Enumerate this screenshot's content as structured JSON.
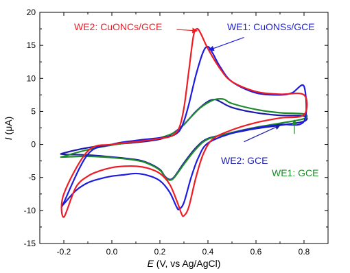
{
  "chart_data": {
    "type": "line",
    "xlabel": {
      "symbol": "E",
      "unit": " (V, vs Ag/AgCl)"
    },
    "ylabel": {
      "symbol": "I",
      "unit": " (μA)"
    },
    "xlim": [
      -0.3,
      0.9
    ],
    "ylim": [
      -15,
      20
    ],
    "xticks": [
      -0.2,
      0.0,
      0.2,
      0.4,
      0.6,
      0.8
    ],
    "xtick_labels": [
      "-0.2",
      "0.0",
      "0.2",
      "0.4",
      "0.6",
      "0.8"
    ],
    "yticks": [
      -15,
      -10,
      -5,
      0,
      5,
      10,
      15,
      20
    ],
    "ytick_labels": [
      "-15",
      "-10",
      "-5",
      "0",
      "5",
      "10",
      "15",
      "20"
    ],
    "grid": false,
    "series": [
      {
        "name": "WE2: CuONCs/GCE",
        "color": "#ee1c25",
        "points": [
          [
            -0.2,
            -11.0
          ],
          [
            -0.15,
            -6.5
          ],
          [
            -0.1,
            -4.8
          ],
          [
            -0.05,
            -4.0
          ],
          [
            0.0,
            -3.5
          ],
          [
            0.05,
            -3.3
          ],
          [
            0.1,
            -3.3
          ],
          [
            0.15,
            -3.6
          ],
          [
            0.2,
            -4.4
          ],
          [
            0.24,
            -6.0
          ],
          [
            0.27,
            -8.5
          ],
          [
            0.29,
            -10.5
          ],
          [
            0.3,
            -10.8
          ],
          [
            0.32,
            -9.5
          ],
          [
            0.35,
            -5.0
          ],
          [
            0.38,
            -1.5
          ],
          [
            0.42,
            0.8
          ],
          [
            0.5,
            2.2
          ],
          [
            0.6,
            3.3
          ],
          [
            0.7,
            4.0
          ],
          [
            0.8,
            4.5
          ],
          [
            0.8,
            7.5
          ],
          [
            0.7,
            7.6
          ],
          [
            0.6,
            8.0
          ],
          [
            0.5,
            9.5
          ],
          [
            0.45,
            11.5
          ],
          [
            0.4,
            14.5
          ],
          [
            0.37,
            16.8
          ],
          [
            0.355,
            17.5
          ],
          [
            0.34,
            16.5
          ],
          [
            0.32,
            11.0
          ],
          [
            0.3,
            5.5
          ],
          [
            0.28,
            2.5
          ],
          [
            0.25,
            1.3
          ],
          [
            0.2,
            0.9
          ],
          [
            0.1,
            0.4
          ],
          [
            0.0,
            0.0
          ],
          [
            -0.1,
            -1.0
          ],
          [
            -0.2,
            -7.5
          ]
        ]
      },
      {
        "name": "WE1: CuONSs/GCE",
        "color": "#1c1ce0",
        "points": [
          [
            -0.2,
            -9.0
          ],
          [
            -0.15,
            -7.0
          ],
          [
            -0.1,
            -5.8
          ],
          [
            -0.05,
            -5.2
          ],
          [
            0.0,
            -4.8
          ],
          [
            0.05,
            -4.6
          ],
          [
            0.1,
            -4.4
          ],
          [
            0.15,
            -4.7
          ],
          [
            0.2,
            -5.5
          ],
          [
            0.24,
            -7.2
          ],
          [
            0.27,
            -9.5
          ],
          [
            0.28,
            -9.8
          ],
          [
            0.3,
            -8.8
          ],
          [
            0.33,
            -5.0
          ],
          [
            0.36,
            -2.0
          ],
          [
            0.4,
            0.2
          ],
          [
            0.5,
            1.7
          ],
          [
            0.6,
            2.5
          ],
          [
            0.7,
            3.0
          ],
          [
            0.8,
            3.5
          ],
          [
            0.8,
            8.8
          ],
          [
            0.75,
            7.8
          ],
          [
            0.7,
            7.5
          ],
          [
            0.6,
            7.8
          ],
          [
            0.5,
            9.5
          ],
          [
            0.45,
            11.8
          ],
          [
            0.42,
            13.8
          ],
          [
            0.4,
            14.8
          ],
          [
            0.38,
            14.0
          ],
          [
            0.35,
            10.5
          ],
          [
            0.32,
            6.0
          ],
          [
            0.3,
            3.5
          ],
          [
            0.28,
            2.0
          ],
          [
            0.25,
            1.3
          ],
          [
            0.2,
            1.0
          ],
          [
            0.1,
            0.6
          ],
          [
            0.0,
            0.0
          ],
          [
            -0.1,
            -1.5
          ],
          [
            -0.2,
            -8.8
          ]
        ]
      },
      {
        "name": "WE2: GCE",
        "color": "#1c1caa",
        "points": [
          [
            -0.2,
            -1.5
          ],
          [
            -0.1,
            -1.6
          ],
          [
            0.0,
            -1.9
          ],
          [
            0.1,
            -2.3
          ],
          [
            0.15,
            -2.8
          ],
          [
            0.2,
            -3.8
          ],
          [
            0.22,
            -4.8
          ],
          [
            0.24,
            -5.3
          ],
          [
            0.26,
            -4.9
          ],
          [
            0.3,
            -2.8
          ],
          [
            0.35,
            -0.5
          ],
          [
            0.4,
            0.9
          ],
          [
            0.5,
            1.7
          ],
          [
            0.6,
            2.4
          ],
          [
            0.7,
            2.9
          ],
          [
            0.8,
            3.5
          ],
          [
            0.8,
            4.3
          ],
          [
            0.7,
            4.4
          ],
          [
            0.6,
            4.8
          ],
          [
            0.5,
            5.6
          ],
          [
            0.45,
            6.5
          ],
          [
            0.43,
            6.8
          ],
          [
            0.4,
            6.5
          ],
          [
            0.35,
            5.0
          ],
          [
            0.3,
            3.0
          ],
          [
            0.25,
            1.6
          ],
          [
            0.2,
            0.8
          ],
          [
            0.1,
            0.3
          ],
          [
            0.0,
            0.0
          ],
          [
            -0.1,
            -0.5
          ],
          [
            -0.2,
            -1.3
          ]
        ]
      },
      {
        "name": "WE1: GCE",
        "color": "#1e8a2a",
        "points": [
          [
            -0.2,
            -1.9
          ],
          [
            -0.1,
            -1.8
          ],
          [
            0.0,
            -2.0
          ],
          [
            0.1,
            -2.4
          ],
          [
            0.15,
            -2.9
          ],
          [
            0.2,
            -3.9
          ],
          [
            0.22,
            -4.9
          ],
          [
            0.24,
            -5.4
          ],
          [
            0.26,
            -5.0
          ],
          [
            0.3,
            -3.0
          ],
          [
            0.35,
            -0.7
          ],
          [
            0.4,
            0.8
          ],
          [
            0.5,
            1.8
          ],
          [
            0.6,
            2.6
          ],
          [
            0.7,
            3.2
          ],
          [
            0.8,
            3.9
          ],
          [
            0.8,
            4.6
          ],
          [
            0.7,
            4.8
          ],
          [
            0.6,
            5.3
          ],
          [
            0.5,
            6.2
          ],
          [
            0.47,
            6.8
          ],
          [
            0.45,
            6.9
          ],
          [
            0.42,
            6.7
          ],
          [
            0.37,
            5.6
          ],
          [
            0.32,
            3.8
          ],
          [
            0.27,
            2.0
          ],
          [
            0.2,
            1.0
          ],
          [
            0.1,
            0.4
          ],
          [
            0.0,
            -0.1
          ],
          [
            -0.1,
            -0.8
          ],
          [
            -0.2,
            -1.8
          ]
        ]
      }
    ],
    "annotations": [
      {
        "text": "WE2: CuONCs/GCE",
        "color": "#ee1c25",
        "arrow_to": [
          0.355,
          17.2
        ],
        "from": [
          0.27,
          17.4
        ]
      },
      {
        "text": "WE1: CuONSs/GCE",
        "color": "#1c1ce0",
        "arrow_to": [
          0.405,
          14.3
        ],
        "from": [
          0.55,
          16.2
        ]
      },
      {
        "text": "WE2: GCE",
        "color": "#1c1caa",
        "arrow_to": [
          0.7,
          2.9
        ],
        "from": [
          0.55,
          0.4
        ]
      },
      {
        "text": "WE1: GCE",
        "color": "#1e8a2a",
        "arrow_to": [
          0.76,
          3.7
        ],
        "from": [
          0.76,
          1.6
        ]
      }
    ]
  }
}
